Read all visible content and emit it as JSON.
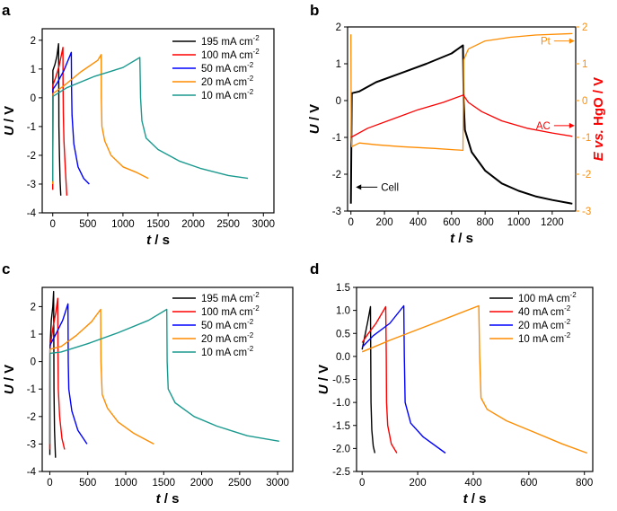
{
  "figure_labels": [
    "a",
    "b",
    "c",
    "d"
  ],
  "chart_data": [
    {
      "panel": "a",
      "type": "line",
      "xlabel_var": "t",
      "xlabel_unit": " / s",
      "ylabel_var": "U",
      "ylabel_unit": " / V",
      "xlim": [
        -150,
        3150
      ],
      "ylim": [
        -4,
        2.4
      ],
      "xticks": [
        0,
        500,
        1000,
        1500,
        2000,
        2500,
        3000
      ],
      "yticks": [
        -4,
        -3,
        -2,
        -1,
        0,
        1,
        2
      ],
      "legend_position": "top-right",
      "series": [
        {
          "name": "195 mA cm",
          "sup": "-2",
          "color": "#000000",
          "points": [
            [
              0,
              -3.0
            ],
            [
              2,
              0.95
            ],
            [
              30,
              1.15
            ],
            [
              60,
              1.45
            ],
            [
              83,
              1.88
            ],
            [
              85,
              1.0
            ],
            [
              88,
              -1.0
            ],
            [
              95,
              -2.0
            ],
            [
              105,
              -2.9
            ],
            [
              115,
              -3.4
            ]
          ]
        },
        {
          "name": "100 mA cm",
          "sup": "-2",
          "color": "#ff0000",
          "points": [
            [
              0,
              -3.2
            ],
            [
              3,
              0.45
            ],
            [
              40,
              0.7
            ],
            [
              90,
              1.1
            ],
            [
              145,
              1.75
            ],
            [
              147,
              0.5
            ],
            [
              150,
              -0.5
            ],
            [
              160,
              -1.5
            ],
            [
              180,
              -2.5
            ],
            [
              200,
              -3.4
            ]
          ]
        },
        {
          "name": "50 mA cm",
          "sup": "-2",
          "color": "#0000ff",
          "points": [
            [
              0,
              -3.0
            ],
            [
              3,
              0.3
            ],
            [
              60,
              0.5
            ],
            [
              160,
              0.95
            ],
            [
              265,
              1.58
            ],
            [
              268,
              0.3
            ],
            [
              275,
              -0.6
            ],
            [
              300,
              -1.6
            ],
            [
              360,
              -2.4
            ],
            [
              440,
              -2.8
            ],
            [
              520,
              -3.0
            ]
          ]
        },
        {
          "name": "20 mA cm",
          "sup": "-2",
          "color": "#ff8c00",
          "points": [
            [
              0,
              -3.0
            ],
            [
              3,
              0.15
            ],
            [
              150,
              0.4
            ],
            [
              400,
              0.9
            ],
            [
              640,
              1.3
            ],
            [
              690,
              1.5
            ],
            [
              692,
              0.0
            ],
            [
              700,
              -1.0
            ],
            [
              740,
              -1.5
            ],
            [
              830,
              -2.0
            ],
            [
              1000,
              -2.4
            ],
            [
              1200,
              -2.6
            ],
            [
              1360,
              -2.8
            ]
          ]
        },
        {
          "name": "10 mA cm",
          "sup": "-2",
          "color": "#1a9a8f",
          "points": [
            [
              0,
              -2.9
            ],
            [
              3,
              0.05
            ],
            [
              200,
              0.35
            ],
            [
              600,
              0.75
            ],
            [
              1000,
              1.05
            ],
            [
              1240,
              1.4
            ],
            [
              1250,
              0.0
            ],
            [
              1270,
              -0.8
            ],
            [
              1330,
              -1.4
            ],
            [
              1500,
              -1.8
            ],
            [
              1800,
              -2.2
            ],
            [
              2100,
              -2.45
            ],
            [
              2500,
              -2.7
            ],
            [
              2780,
              -2.8
            ]
          ]
        }
      ]
    },
    {
      "panel": "b",
      "type": "line",
      "xlabel_var": "t",
      "xlabel_unit": " / s",
      "ylabel_var": "U",
      "ylabel_unit": " / V",
      "ylabel_right_var": "E vs.",
      "ylabel_right_unit": " HgO / V",
      "right_axis_color": "#ff0000",
      "right_tick_color": "#ff8c00",
      "xlim": [
        -20,
        1340
      ],
      "ylim": [
        -3,
        2
      ],
      "ylim_right": [
        -3,
        2
      ],
      "xticks": [
        0,
        200,
        400,
        600,
        800,
        1000,
        1200
      ],
      "yticks": [
        -3,
        -2,
        -1,
        0,
        1,
        2
      ],
      "yticks_right": [
        -3,
        -2,
        -1,
        0,
        1,
        2
      ],
      "annotations": [
        {
          "text": "Pt",
          "color": "#ff8c00",
          "arrow": "right",
          "x": 1200,
          "y": 1.62
        },
        {
          "text": "AC",
          "color": "#ff0000",
          "arrow": "right",
          "x": 1200,
          "y": -0.68
        },
        {
          "text": "Cell",
          "color": "#000000",
          "arrow": "left",
          "x": 40,
          "y": -2.35
        }
      ],
      "series": [
        {
          "name": "Cell",
          "color": "#000000",
          "width": 2,
          "points": [
            [
              0,
              -2.8
            ],
            [
              3,
              -1.0
            ],
            [
              5,
              0.2
            ],
            [
              50,
              0.25
            ],
            [
              150,
              0.5
            ],
            [
              300,
              0.75
            ],
            [
              450,
              1.0
            ],
            [
              600,
              1.28
            ],
            [
              668,
              1.5
            ],
            [
              672,
              0.0
            ],
            [
              680,
              -0.8
            ],
            [
              720,
              -1.4
            ],
            [
              800,
              -1.9
            ],
            [
              900,
              -2.25
            ],
            [
              1000,
              -2.45
            ],
            [
              1100,
              -2.6
            ],
            [
              1200,
              -2.7
            ],
            [
              1320,
              -2.8
            ]
          ]
        },
        {
          "name": "Pt",
          "color": "#ff8c00",
          "width": 1.3,
          "points": [
            [
              0,
              1.8
            ],
            [
              2,
              -1.0
            ],
            [
              5,
              -1.25
            ],
            [
              50,
              -1.15
            ],
            [
              150,
              -1.2
            ],
            [
              300,
              -1.25
            ],
            [
              500,
              -1.3
            ],
            [
              668,
              -1.35
            ],
            [
              672,
              1.1
            ],
            [
              700,
              1.4
            ],
            [
              800,
              1.62
            ],
            [
              950,
              1.72
            ],
            [
              1100,
              1.78
            ],
            [
              1320,
              1.82
            ]
          ]
        },
        {
          "name": "AC",
          "color": "#ff0000",
          "width": 1.3,
          "points": [
            [
              0,
              -1.0
            ],
            [
              100,
              -0.75
            ],
            [
              250,
              -0.5
            ],
            [
              400,
              -0.25
            ],
            [
              550,
              -0.05
            ],
            [
              670,
              0.15
            ],
            [
              700,
              -0.05
            ],
            [
              780,
              -0.3
            ],
            [
              900,
              -0.55
            ],
            [
              1050,
              -0.75
            ],
            [
              1200,
              -0.88
            ],
            [
              1320,
              -0.97
            ]
          ]
        }
      ]
    },
    {
      "panel": "c",
      "type": "line",
      "xlabel_var": "t",
      "xlabel_unit": " / s",
      "ylabel_var": "U",
      "ylabel_unit": " / V",
      "xlim": [
        -100,
        3200
      ],
      "ylim": [
        -4,
        2.7
      ],
      "xticks": [
        0,
        500,
        1000,
        1500,
        2000,
        2500,
        3000
      ],
      "yticks": [
        -4,
        -3,
        -2,
        -1,
        0,
        1,
        2
      ],
      "legend_position": "top-right",
      "series": [
        {
          "name": "195 mA cm",
          "sup": "-2",
          "color": "#000000",
          "points": [
            [
              0,
              -3.4
            ],
            [
              2,
              0.4
            ],
            [
              20,
              1.5
            ],
            [
              40,
              2.0
            ],
            [
              50,
              2.55
            ],
            [
              52,
              1.0
            ],
            [
              55,
              -1.0
            ],
            [
              62,
              -2.5
            ],
            [
              75,
              -3.5
            ]
          ]
        },
        {
          "name": "100 mA cm",
          "sup": "-2",
          "color": "#ff0000",
          "points": [
            [
              0,
              -3.2
            ],
            [
              3,
              0.5
            ],
            [
              40,
              1.2
            ],
            [
              80,
              1.8
            ],
            [
              105,
              2.3
            ],
            [
              107,
              0.5
            ],
            [
              112,
              -1.0
            ],
            [
              130,
              -2.0
            ],
            [
              160,
              -2.8
            ],
            [
              195,
              -3.2
            ]
          ]
        },
        {
          "name": "50 mA cm",
          "sup": "-2",
          "color": "#0000ff",
          "points": [
            [
              0,
              -3.0
            ],
            [
              3,
              0.6
            ],
            [
              80,
              1.0
            ],
            [
              170,
              1.5
            ],
            [
              240,
              2.1
            ],
            [
              243,
              0.0
            ],
            [
              250,
              -1.0
            ],
            [
              290,
              -1.8
            ],
            [
              370,
              -2.5
            ],
            [
              490,
              -3.0
            ]
          ]
        },
        {
          "name": "20 mA cm",
          "sup": "-2",
          "color": "#ff8c00",
          "points": [
            [
              0,
              -3.0
            ],
            [
              3,
              0.45
            ],
            [
              150,
              0.55
            ],
            [
              350,
              0.95
            ],
            [
              550,
              1.45
            ],
            [
              670,
              1.9
            ],
            [
              673,
              0.0
            ],
            [
              690,
              -1.2
            ],
            [
              760,
              -1.7
            ],
            [
              900,
              -2.2
            ],
            [
              1100,
              -2.6
            ],
            [
              1370,
              -3.0
            ]
          ]
        },
        {
          "name": "10 mA cm",
          "sup": "-2",
          "color": "#1a9a8f",
          "points": [
            [
              0,
              -3.0
            ],
            [
              3,
              0.3
            ],
            [
              150,
              0.35
            ],
            [
              500,
              0.65
            ],
            [
              900,
              1.05
            ],
            [
              1300,
              1.5
            ],
            [
              1540,
              1.9
            ],
            [
              1545,
              0.0
            ],
            [
              1560,
              -1.0
            ],
            [
              1650,
              -1.5
            ],
            [
              1900,
              -2.0
            ],
            [
              2200,
              -2.35
            ],
            [
              2600,
              -2.7
            ],
            [
              3020,
              -2.9
            ]
          ]
        }
      ]
    },
    {
      "panel": "d",
      "type": "line",
      "xlabel_var": "t",
      "xlabel_unit": " / s",
      "ylabel_var": "U",
      "ylabel_unit": " / V",
      "xlim": [
        -20,
        830
      ],
      "ylim": [
        -2.5,
        1.5
      ],
      "xticks": [
        0,
        200,
        400,
        600,
        800
      ],
      "yticks": [
        -2.5,
        -2.0,
        -1.5,
        -1.0,
        -0.5,
        0.0,
        0.5,
        1.0,
        1.5
      ],
      "legend_position": "top-right",
      "series": [
        {
          "name": "100 mA cm",
          "sup": "-2",
          "color": "#000000",
          "points": [
            [
              0,
              0.15
            ],
            [
              10,
              0.45
            ],
            [
              20,
              0.75
            ],
            [
              30,
              1.08
            ],
            [
              31,
              0.0
            ],
            [
              32,
              -1.0
            ],
            [
              35,
              -1.6
            ],
            [
              40,
              -1.95
            ],
            [
              46,
              -2.1
            ]
          ]
        },
        {
          "name": "40 mA cm",
          "sup": "-2",
          "color": "#ff0000",
          "points": [
            [
              0,
              0.3
            ],
            [
              20,
              0.48
            ],
            [
              50,
              0.72
            ],
            [
              85,
              1.08
            ],
            [
              87,
              0.0
            ],
            [
              88,
              -1.0
            ],
            [
              92,
              -1.5
            ],
            [
              105,
              -1.9
            ],
            [
              125,
              -2.1
            ]
          ]
        },
        {
          "name": "20 mA cm",
          "sup": "-2",
          "color": "#0000ff",
          "points": [
            [
              0,
              0.2
            ],
            [
              40,
              0.45
            ],
            [
              100,
              0.72
            ],
            [
              150,
              1.1
            ],
            [
              152,
              0.0
            ],
            [
              155,
              -1.0
            ],
            [
              175,
              -1.45
            ],
            [
              220,
              -1.75
            ],
            [
              300,
              -2.1
            ]
          ]
        },
        {
          "name": "10 mA cm",
          "sup": "-2",
          "color": "#ff8c00",
          "points": [
            [
              0,
              0.1
            ],
            [
              100,
              0.35
            ],
            [
              250,
              0.7
            ],
            [
              420,
              1.1
            ],
            [
              423,
              0.0
            ],
            [
              428,
              -0.9
            ],
            [
              450,
              -1.15
            ],
            [
              520,
              -1.4
            ],
            [
              620,
              -1.65
            ],
            [
              720,
              -1.9
            ],
            [
              810,
              -2.1
            ]
          ]
        }
      ]
    }
  ]
}
